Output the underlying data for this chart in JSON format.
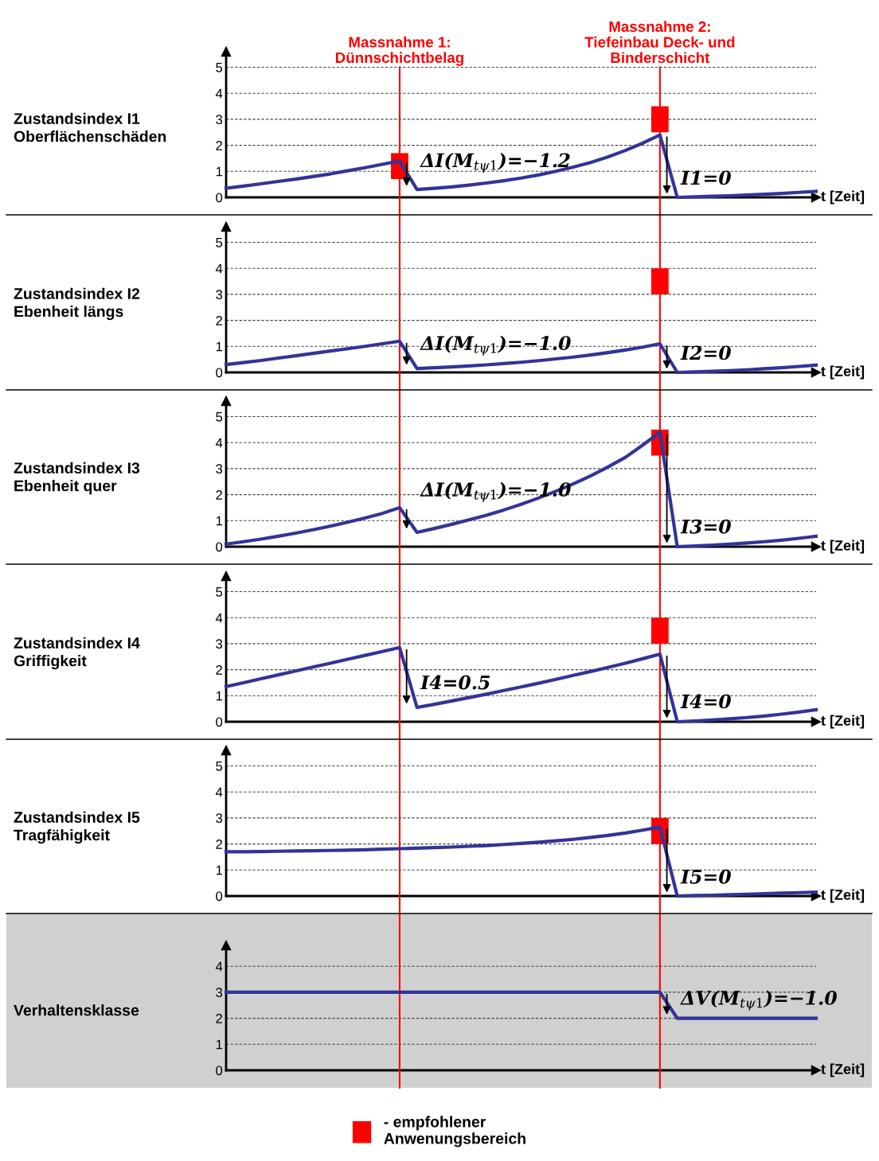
{
  "chart_data": [
    {
      "type": "line",
      "ylabel": "Zustandsindex I1\nOberflächenschäden",
      "xlabel": "t [Zeit]",
      "categories": [
        null,
        null,
        null,
        null,
        null,
        null,
        null,
        null,
        null,
        null,
        null,
        null,
        null,
        null,
        null,
        null,
        null,
        null,
        null,
        null,
        null,
        null,
        null,
        null,
        null,
        null,
        null,
        null,
        null,
        null,
        null,
        null,
        null,
        null,
        null
      ],
      "ylim": [
        0,
        5.6
      ],
      "yticks": [
        0,
        1,
        2,
        3,
        4,
        5
      ],
      "grid": "y",
      "tick_labels": "y",
      "legend": "bottom",
      "series": [
        {
          "type": "bar",
          "name": "- empfohlener\nAnwenungsbereich",
          "color": "#ff0000",
          "values": [
            null,
            null,
            null,
            null,
            null,
            null,
            null,
            null,
            null,
            null,
            1.0,
            null,
            null,
            null,
            null,
            null,
            null,
            null,
            null,
            null,
            null,
            null,
            null,
            null,
            null,
            1.0,
            null,
            null,
            null,
            null,
            null,
            null,
            null,
            null,
            null
          ],
          "base": [
            null,
            null,
            null,
            null,
            null,
            null,
            null,
            null,
            null,
            null,
            0.7,
            null,
            null,
            null,
            null,
            null,
            null,
            null,
            null,
            null,
            null,
            null,
            null,
            null,
            null,
            2.5,
            null,
            null,
            null,
            null,
            null,
            null,
            null,
            null,
            null
          ]
        },
        {
          "color": "#333399",
          "values": [
            0.35,
            0.43,
            0.52,
            0.61,
            0.7,
            0.8,
            0.9,
            1.02,
            1.14,
            1.27,
            1.4,
            0.3,
            0.35,
            0.4,
            0.47,
            0.55,
            0.64,
            0.74,
            0.86,
            1.0,
            1.16,
            1.34,
            1.55,
            1.8,
            2.08,
            2.4,
            0,
            0.02,
            0.04,
            0.06,
            0.09,
            0.12,
            0.15,
            0.19,
            0.23
          ]
        }
      ],
      "annotations": [
        "Massnahme 1:\nDünnschichtbelag",
        "Massnahme 2:\nTiefeinbau Deck- und\nBinderschicht",
        "ΔI(M$_{tψ1}$)=−1.2",
        "I1=0"
      ]
    },
    {
      "type": "line",
      "ylabel": "Zustandsindex I2\nEbenheit längs",
      "xlabel": "t [Zeit]",
      "categories": [
        null,
        null,
        null,
        null,
        null,
        null,
        null,
        null,
        null,
        null,
        null,
        null,
        null,
        null,
        null,
        null,
        null,
        null,
        null,
        null,
        null,
        null,
        null,
        null,
        null,
        null,
        null,
        null,
        null,
        null,
        null,
        null,
        null,
        null,
        null
      ],
      "ylim": [
        0,
        5.6
      ],
      "yticks": [
        0,
        1,
        2,
        3,
        4,
        5
      ],
      "grid": "y",
      "tick_labels": "y",
      "series": [
        {
          "type": "bar",
          "color": "#ff0000",
          "values": [
            null,
            null,
            null,
            null,
            null,
            null,
            null,
            null,
            null,
            null,
            null,
            null,
            null,
            null,
            null,
            null,
            null,
            null,
            null,
            null,
            null,
            null,
            null,
            null,
            null,
            1.0,
            null,
            null,
            null,
            null,
            null,
            null,
            null,
            null,
            null
          ],
          "base": [
            null,
            null,
            null,
            null,
            null,
            null,
            null,
            null,
            null,
            null,
            null,
            null,
            null,
            null,
            null,
            null,
            null,
            null,
            null,
            null,
            null,
            null,
            null,
            null,
            null,
            3.0,
            null,
            null,
            null,
            null,
            null,
            null,
            null,
            null,
            null
          ]
        },
        {
          "color": "#333399",
          "values": [
            0.3,
            0.38,
            0.46,
            0.55,
            0.64,
            0.73,
            0.82,
            0.91,
            1.0,
            1.1,
            1.2,
            0.15,
            0.18,
            0.21,
            0.25,
            0.29,
            0.34,
            0.39,
            0.45,
            0.52,
            0.59,
            0.67,
            0.76,
            0.86,
            0.97,
            1.1,
            0,
            0.02,
            0.04,
            0.07,
            0.1,
            0.14,
            0.18,
            0.23,
            0.28
          ]
        }
      ],
      "annotations": [
        "ΔI(M$_{tψ1}$)=−1.0",
        "I2=0"
      ]
    },
    {
      "type": "line",
      "ylabel": "Zustandsindex I3\nEbenheit quer",
      "xlabel": "t [Zeit]",
      "categories": [
        null,
        null,
        null,
        null,
        null,
        null,
        null,
        null,
        null,
        null,
        null,
        null,
        null,
        null,
        null,
        null,
        null,
        null,
        null,
        null,
        null,
        null,
        null,
        null,
        null,
        null,
        null,
        null,
        null,
        null,
        null,
        null,
        null,
        null,
        null
      ],
      "ylim": [
        0,
        5.6
      ],
      "yticks": [
        0,
        1,
        2,
        3,
        4,
        5
      ],
      "grid": "y",
      "tick_labels": "y",
      "series": [
        {
          "type": "bar",
          "color": "#ff0000",
          "values": [
            null,
            null,
            null,
            null,
            null,
            null,
            null,
            null,
            null,
            null,
            null,
            null,
            null,
            null,
            null,
            null,
            null,
            null,
            null,
            null,
            null,
            null,
            null,
            null,
            null,
            1.0,
            null,
            null,
            null,
            null,
            null,
            null,
            null,
            null,
            null
          ],
          "base": [
            null,
            null,
            null,
            null,
            null,
            null,
            null,
            null,
            null,
            null,
            null,
            null,
            null,
            null,
            null,
            null,
            null,
            null,
            null,
            null,
            null,
            null,
            null,
            null,
            null,
            3.5,
            null,
            null,
            null,
            null,
            null,
            null,
            null,
            null,
            null
          ]
        },
        {
          "color": "#333399",
          "values": [
            0.1,
            0.19,
            0.29,
            0.4,
            0.52,
            0.65,
            0.79,
            0.94,
            1.1,
            1.28,
            1.5,
            0.55,
            0.7,
            0.86,
            1.03,
            1.21,
            1.41,
            1.63,
            1.87,
            2.13,
            2.41,
            2.72,
            3.06,
            3.43,
            3.9,
            4.4,
            0,
            0.03,
            0.06,
            0.1,
            0.14,
            0.19,
            0.25,
            0.32,
            0.4
          ]
        }
      ],
      "annotations": [
        "ΔI(M$_{tψ1}$)=−1.0",
        "I3=0"
      ]
    },
    {
      "type": "line",
      "ylabel": "Zustandsindex I4\nGriffigkeit",
      "xlabel": "t [Zeit]",
      "categories": [
        null,
        null,
        null,
        null,
        null,
        null,
        null,
        null,
        null,
        null,
        null,
        null,
        null,
        null,
        null,
        null,
        null,
        null,
        null,
        null,
        null,
        null,
        null,
        null,
        null,
        null,
        null,
        null,
        null,
        null,
        null,
        null,
        null,
        null,
        null
      ],
      "ylim": [
        0,
        5.6
      ],
      "yticks": [
        0,
        1,
        2,
        3,
        4,
        5
      ],
      "grid": "y",
      "tick_labels": "y",
      "series": [
        {
          "type": "bar",
          "color": "#ff0000",
          "values": [
            null,
            null,
            null,
            null,
            null,
            null,
            null,
            null,
            null,
            null,
            null,
            null,
            null,
            null,
            null,
            null,
            null,
            null,
            null,
            null,
            null,
            null,
            null,
            null,
            null,
            1.0,
            null,
            null,
            null,
            null,
            null,
            null,
            null,
            null,
            null
          ],
          "base": [
            null,
            null,
            null,
            null,
            null,
            null,
            null,
            null,
            null,
            null,
            null,
            null,
            null,
            null,
            null,
            null,
            null,
            null,
            null,
            null,
            null,
            null,
            null,
            null,
            null,
            3.0,
            null,
            null,
            null,
            null,
            null,
            null,
            null,
            null,
            null
          ]
        },
        {
          "color": "#333399",
          "values": [
            1.35,
            1.5,
            1.65,
            1.8,
            1.95,
            2.1,
            2.25,
            2.4,
            2.55,
            2.7,
            2.85,
            0.55,
            0.67,
            0.8,
            0.93,
            1.06,
            1.2,
            1.34,
            1.48,
            1.63,
            1.78,
            1.93,
            2.09,
            2.25,
            2.42,
            2.6,
            0,
            0.03,
            0.07,
            0.11,
            0.16,
            0.22,
            0.29,
            0.37,
            0.46
          ]
        }
      ],
      "annotations": [
        "I4=0.5",
        "I4=0"
      ]
    },
    {
      "type": "line",
      "ylabel": "Zustandsindex I5\nTragfähigkeit",
      "xlabel": "t [Zeit]",
      "categories": [
        null,
        null,
        null,
        null,
        null,
        null,
        null,
        null,
        null,
        null,
        null,
        null,
        null,
        null,
        null,
        null,
        null,
        null,
        null,
        null,
        null,
        null,
        null,
        null,
        null,
        null,
        null,
        null,
        null,
        null,
        null,
        null,
        null,
        null,
        null
      ],
      "ylim": [
        0,
        5.6
      ],
      "yticks": [
        0,
        1,
        2,
        3,
        4,
        5
      ],
      "grid": "y",
      "tick_labels": "y",
      "series": [
        {
          "type": "bar",
          "color": "#ff0000",
          "values": [
            null,
            null,
            null,
            null,
            null,
            null,
            null,
            null,
            null,
            null,
            null,
            null,
            null,
            null,
            null,
            null,
            null,
            null,
            null,
            null,
            null,
            null,
            null,
            null,
            null,
            1.0,
            null,
            null,
            null,
            null,
            null,
            null,
            null,
            null,
            null
          ],
          "base": [
            null,
            null,
            null,
            null,
            null,
            null,
            null,
            null,
            null,
            null,
            null,
            null,
            null,
            null,
            null,
            null,
            null,
            null,
            null,
            null,
            null,
            null,
            null,
            null,
            null,
            2.0,
            null,
            null,
            null,
            null,
            null,
            null,
            null,
            null,
            null
          ]
        },
        {
          "color": "#333399",
          "values": [
            1.7,
            1.7,
            1.71,
            1.72,
            1.73,
            1.74,
            1.75,
            1.76,
            1.78,
            1.8,
            1.82,
            1.84,
            1.86,
            1.88,
            1.91,
            1.94,
            1.98,
            2.02,
            2.07,
            2.12,
            2.18,
            2.25,
            2.33,
            2.42,
            2.53,
            2.65,
            0,
            0.02,
            0.03,
            0.05,
            0.07,
            0.09,
            0.11,
            0.13,
            0.15
          ]
        }
      ],
      "annotations": [
        "I5=0"
      ]
    },
    {
      "type": "line",
      "ylabel": "Verhaltensklasse",
      "xlabel": "t [Zeit]",
      "categories": [
        null,
        null,
        null,
        null,
        null,
        null,
        null,
        null,
        null,
        null,
        null,
        null,
        null,
        null,
        null,
        null,
        null,
        null,
        null,
        null,
        null,
        null,
        null,
        null,
        null,
        null,
        null,
        null,
        null,
        null,
        null,
        null,
        null,
        null,
        null
      ],
      "ylim": [
        0,
        4.8
      ],
      "yticks": [
        0,
        1,
        2,
        3,
        4
      ],
      "grid": "y",
      "tick_labels": "y",
      "series": [
        {
          "color": "#333399",
          "values": [
            3,
            3,
            3,
            3,
            3,
            3,
            3,
            3,
            3,
            3,
            3,
            3,
            3,
            3,
            3,
            3,
            3,
            3,
            3,
            3,
            3,
            3,
            3,
            3,
            3,
            3,
            2,
            2,
            2,
            2,
            2,
            2,
            2,
            2,
            2
          ]
        }
      ],
      "annotations": [
        "ΔV(M$_{tψ1}$)=−1.0"
      ]
    }
  ]
}
